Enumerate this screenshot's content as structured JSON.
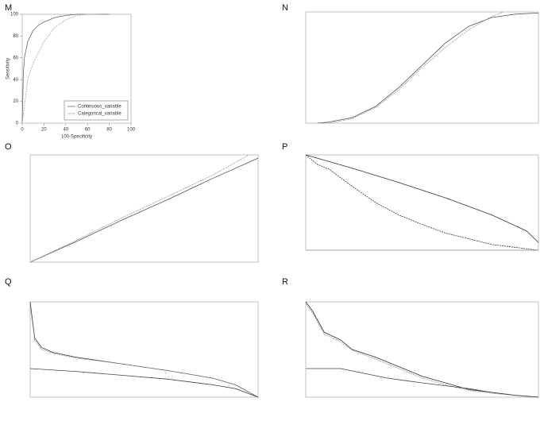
{
  "chart_data": [
    {
      "type": "line",
      "label": "M",
      "x_label": "100-Specificity",
      "y_label": "Sensitivity",
      "xlim": [
        0,
        100
      ],
      "ylim": [
        0,
        100
      ],
      "xticks": [
        0,
        20,
        40,
        60,
        80,
        100
      ],
      "yticks": [
        0,
        20,
        40,
        60,
        80,
        100
      ],
      "legend": "bottom-right",
      "series": [
        {
          "name": "Continuous_variable",
          "color": "#666666",
          "x": [
            0,
            1,
            2,
            5,
            10,
            15,
            20,
            30,
            40,
            50,
            60,
            70,
            80
          ],
          "values": [
            0,
            45,
            60,
            75,
            85,
            90,
            93,
            97,
            99,
            100,
            100,
            100,
            100
          ]
        },
        {
          "name": "Categorical_variable",
          "color": "#aaaaaa",
          "x": [
            0,
            5,
            10,
            20,
            30,
            40,
            50,
            60,
            70
          ],
          "values": [
            0,
            40,
            55,
            75,
            88,
            95,
            99,
            100,
            100
          ]
        }
      ]
    },
    {
      "type": "line",
      "label": "N",
      "xlim": [
        0,
        1
      ],
      "ylim": [
        0,
        1
      ],
      "series": [
        {
          "color": "#555555",
          "x": [
            0.05,
            0.1,
            0.2,
            0.3,
            0.4,
            0.5,
            0.6,
            0.7,
            0.8,
            0.9,
            1
          ],
          "values": [
            0.0,
            0.01,
            0.05,
            0.15,
            0.32,
            0.52,
            0.72,
            0.87,
            0.95,
            0.98,
            0.99
          ]
        },
        {
          "color": "#999999",
          "x": [
            0.05,
            0.1,
            0.2,
            0.3,
            0.4,
            0.5,
            0.6,
            0.7,
            0.8,
            0.85
          ],
          "values": [
            0.0,
            0.0,
            0.04,
            0.14,
            0.3,
            0.5,
            0.68,
            0.84,
            0.96,
            1.0
          ]
        }
      ]
    },
    {
      "type": "line",
      "label": "O",
      "xlim": [
        0,
        1
      ],
      "ylim": [
        0,
        1
      ],
      "series": [
        {
          "color": "#555555",
          "x": [
            0,
            0.2,
            0.4,
            0.6,
            0.8,
            1
          ],
          "values": [
            0.0,
            0.19,
            0.39,
            0.58,
            0.78,
            0.97
          ]
        },
        {
          "color": "#999999",
          "x": [
            0,
            0.2,
            0.4,
            0.6,
            0.8,
            0.96
          ],
          "values": [
            0.0,
            0.2,
            0.41,
            0.61,
            0.81,
            1.0
          ]
        }
      ]
    },
    {
      "type": "line",
      "label": "P",
      "xlim": [
        0,
        1
      ],
      "ylim": [
        0,
        1
      ],
      "series": [
        {
          "color": "#333333",
          "x": [
            0,
            0.2,
            0.4,
            0.6,
            0.8,
            0.95,
            1
          ],
          "values": [
            1.0,
            0.86,
            0.71,
            0.55,
            0.37,
            0.2,
            0.08
          ]
        },
        {
          "color": "#333333",
          "x": [
            0,
            0.05,
            0.1,
            0.2,
            0.3,
            0.4,
            0.5,
            0.6,
            0.8,
            1
          ],
          "values": [
            1.0,
            0.9,
            0.85,
            0.67,
            0.5,
            0.37,
            0.27,
            0.18,
            0.06,
            0.0
          ]
        },
        {
          "color": "#999999",
          "x": [
            0,
            1
          ],
          "values": [
            0.0,
            0.0
          ]
        }
      ]
    },
    {
      "type": "line",
      "label": "Q",
      "xlim": [
        0,
        1
      ],
      "ylim": [
        0,
        1
      ],
      "series": [
        {
          "color": "#333333",
          "x": [
            0,
            0.02,
            0.05,
            0.1,
            0.2,
            0.4,
            0.6,
            0.8,
            0.9,
            1
          ],
          "values": [
            1.0,
            0.62,
            0.52,
            0.47,
            0.42,
            0.35,
            0.28,
            0.2,
            0.13,
            0.0
          ]
        },
        {
          "color": "#999999",
          "x": [
            0,
            0.02,
            0.05,
            0.1,
            0.2,
            0.4,
            0.6,
            0.8,
            0.9,
            1
          ],
          "values": [
            0.96,
            0.6,
            0.5,
            0.46,
            0.41,
            0.35,
            0.28,
            0.2,
            0.13,
            0.0
          ]
        },
        {
          "color": "#444444",
          "x": [
            0,
            0.2,
            0.4,
            0.6,
            0.8,
            0.9,
            1
          ],
          "values": [
            0.3,
            0.27,
            0.23,
            0.19,
            0.13,
            0.09,
            0.0
          ]
        }
      ]
    },
    {
      "type": "line",
      "label": "R",
      "xlim": [
        0,
        1
      ],
      "ylim": [
        0,
        1
      ],
      "series": [
        {
          "color": "#333333",
          "x": [
            0,
            0.03,
            0.08,
            0.15,
            0.2,
            0.3,
            0.4,
            0.5,
            0.6,
            0.7,
            0.8,
            0.9,
            1
          ],
          "values": [
            1.0,
            0.9,
            0.68,
            0.6,
            0.5,
            0.42,
            0.32,
            0.22,
            0.15,
            0.08,
            0.05,
            0.02,
            0.0
          ]
        },
        {
          "color": "#999999",
          "x": [
            0,
            0.03,
            0.08,
            0.15,
            0.2,
            0.3,
            0.4,
            0.5,
            0.6,
            0.7,
            0.8,
            0.9,
            1
          ],
          "values": [
            0.98,
            0.88,
            0.66,
            0.58,
            0.49,
            0.4,
            0.3,
            0.2,
            0.13,
            0.07,
            0.04,
            0.02,
            0.0
          ]
        },
        {
          "color": "#444444",
          "x": [
            0,
            0.15,
            0.25,
            0.35,
            0.5,
            0.6,
            0.7,
            0.8,
            0.9,
            1
          ],
          "values": [
            0.3,
            0.3,
            0.25,
            0.2,
            0.15,
            0.12,
            0.09,
            0.05,
            0.02,
            0.0
          ]
        }
      ]
    }
  ]
}
